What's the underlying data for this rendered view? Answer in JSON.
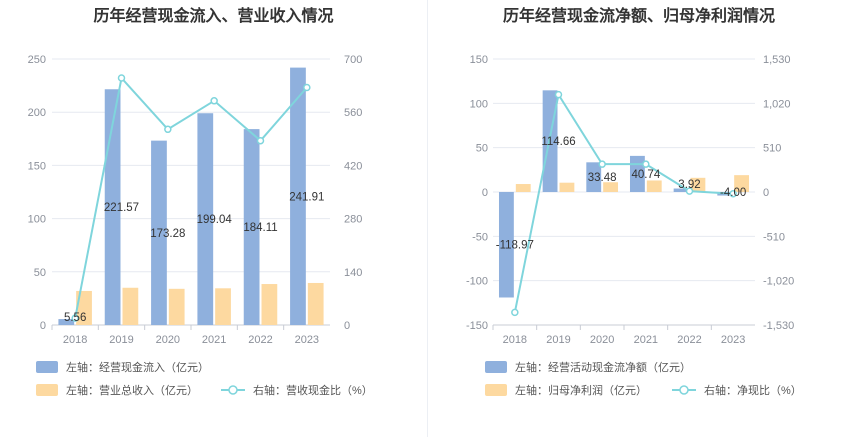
{
  "charts": [
    {
      "title": "历年经营现金流入、营业收入情况",
      "legend": [
        "左轴：经营现金流入（亿元）",
        "左轴：营业总收入（亿元）",
        "右轴：营收现金比（%）"
      ]
    },
    {
      "title": "历年经营现金流净额、归母净利润情况",
      "legend": [
        "左轴：经营活动现金流净额（亿元）",
        "左轴：归母净利润（亿元）",
        "右轴：净现比（%）"
      ]
    }
  ],
  "colors": {
    "bar_primary": "#8fb0dd",
    "bar_secondary": "#fdd9a0",
    "line": "#7fd5dc",
    "grid": "#e6e9f0",
    "text": "#8a8f99"
  },
  "chart_data": [
    {
      "type": "bar",
      "title": "历年经营现金流入、营业收入情况",
      "categories": [
        "2018",
        "2019",
        "2020",
        "2021",
        "2022",
        "2023"
      ],
      "y_left": {
        "ticks": [
          0,
          50,
          100,
          150,
          200,
          250
        ],
        "range": [
          0,
          250
        ]
      },
      "y_right": {
        "ticks": [
          0,
          140,
          280,
          420,
          560,
          700
        ],
        "range": [
          0,
          700
        ]
      },
      "series": [
        {
          "name": "左轴：经营现金流入（亿元）",
          "axis": "left",
          "kind": "bar",
          "values": [
            5.56,
            221.57,
            173.28,
            199.04,
            184.11,
            241.91
          ],
          "labels": [
            "5.56",
            "221.57",
            "173.28",
            "199.04",
            "184.11",
            "241.91"
          ]
        },
        {
          "name": "左轴：营业总收入（亿元）",
          "axis": "left",
          "kind": "bar",
          "values": [
            32,
            35,
            34,
            34.5,
            38.5,
            39.5
          ]
        },
        {
          "name": "右轴：营收现金比（%）",
          "axis": "right",
          "kind": "line",
          "values": [
            18,
            650,
            515,
            590,
            485,
            625
          ]
        }
      ],
      "grid": true,
      "legend_position": "bottom"
    },
    {
      "type": "bar",
      "title": "历年经营现金流净额、归母净利润情况",
      "categories": [
        "2018",
        "2019",
        "2020",
        "2021",
        "2022",
        "2023"
      ],
      "y_left": {
        "ticks": [
          -150,
          -100,
          -50,
          0,
          50,
          100,
          150
        ],
        "tick_labels": [
          "-150",
          "-100",
          "-50",
          "0",
          "50",
          "100",
          "150"
        ],
        "range": [
          -150,
          150
        ]
      },
      "y_right": {
        "ticks": [
          -1530,
          -1020,
          -510,
          0,
          510,
          1020,
          1530
        ],
        "tick_labels": [
          "-1,530",
          "-1,020",
          "-510",
          "0",
          "510",
          "1,020",
          "1,530"
        ],
        "range": [
          -1530,
          1530
        ]
      },
      "series": [
        {
          "name": "左轴：经营活动现金流净额（亿元）",
          "axis": "left",
          "kind": "bar",
          "values": [
            -118.97,
            114.66,
            33.48,
            40.74,
            3.92,
            -4.0
          ],
          "labels": [
            "-118.97",
            "114.66",
            "33.48",
            "40.74",
            "3.92",
            "-4.00"
          ]
        },
        {
          "name": "左轴：归母净利润（亿元）",
          "axis": "left",
          "kind": "bar",
          "values": [
            9,
            10.5,
            11,
            13,
            16,
            19
          ]
        },
        {
          "name": "右轴：净现比（%）",
          "axis": "right",
          "kind": "line",
          "values": [
            -1385,
            1120,
            320,
            320,
            10,
            -20
          ]
        }
      ],
      "grid": true,
      "legend_position": "bottom"
    }
  ]
}
